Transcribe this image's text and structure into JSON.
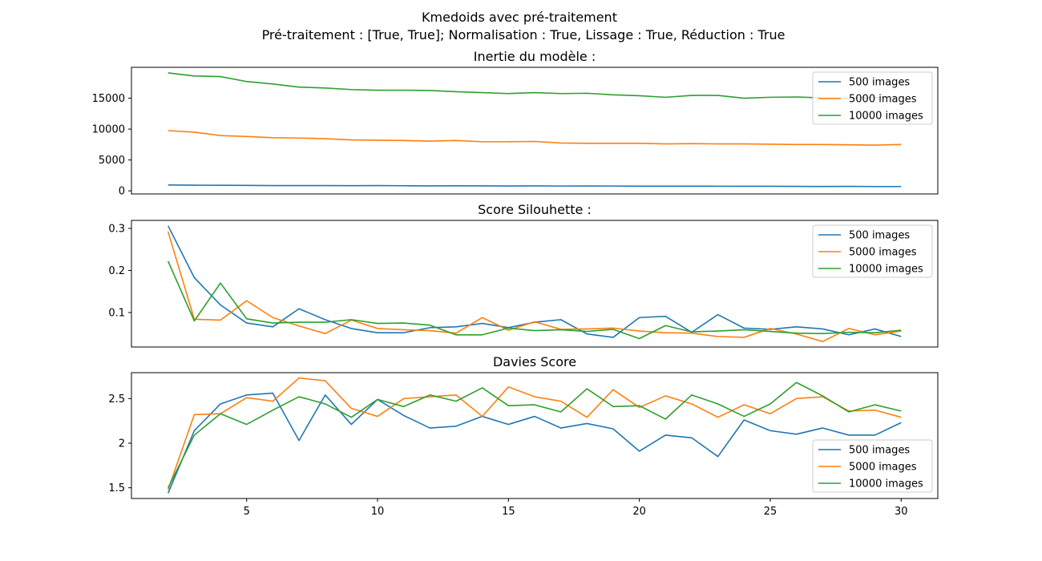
{
  "figure": {
    "title": "Kmedoids avec pré-traitement",
    "subtitle": "Pré-traitement : [True, True]; Normalisation : True, Lissage : True, Réduction : True"
  },
  "colors": {
    "500 images": "#1f77b4",
    "5000 images": "#ff7f0e",
    "10000 images": "#2ca02c"
  },
  "chart_data": [
    {
      "type": "line",
      "title": "Inertie du modèle :",
      "x": [
        2,
        3,
        4,
        5,
        6,
        7,
        8,
        9,
        10,
        11,
        12,
        13,
        14,
        15,
        16,
        17,
        18,
        19,
        20,
        21,
        22,
        23,
        24,
        25,
        26,
        27,
        28,
        29,
        30
      ],
      "series": [
        {
          "name": "500 images",
          "values": [
            950,
            920,
            900,
            880,
            860,
            850,
            860,
            840,
            860,
            830,
            810,
            820,
            800,
            790,
            800,
            780,
            790,
            780,
            760,
            760,
            760,
            750,
            740,
            740,
            720,
            710,
            720,
            700,
            700
          ]
        },
        {
          "name": "5000 images",
          "values": [
            9750,
            9500,
            8950,
            8800,
            8600,
            8550,
            8450,
            8250,
            8200,
            8150,
            8050,
            8150,
            7950,
            7950,
            8000,
            7750,
            7700,
            7700,
            7700,
            7600,
            7650,
            7600,
            7600,
            7550,
            7500,
            7500,
            7450,
            7400,
            7500
          ]
        },
        {
          "name": "10000 images",
          "values": [
            19100,
            18600,
            18500,
            17700,
            17300,
            16800,
            16650,
            16400,
            16300,
            16300,
            16250,
            16050,
            15900,
            15750,
            15900,
            15750,
            15800,
            15550,
            15400,
            15150,
            15450,
            15450,
            15000,
            15150,
            15200,
            15050,
            15000,
            15100,
            15200
          ]
        }
      ],
      "yticks": [
        0,
        5000,
        10000,
        15000
      ],
      "ylim": [
        -500,
        20000
      ],
      "xlim": [
        0.6,
        31.4
      ],
      "legend_position": "upper right"
    },
    {
      "type": "line",
      "title": "Score Silouhette :",
      "x": [
        2,
        3,
        4,
        5,
        6,
        7,
        8,
        9,
        10,
        11,
        12,
        13,
        14,
        15,
        16,
        17,
        18,
        19,
        20,
        21,
        22,
        23,
        24,
        25,
        26,
        27,
        28,
        29,
        30
      ],
      "series": [
        {
          "name": "500 images",
          "values": [
            0.306,
            0.183,
            0.118,
            0.075,
            0.066,
            0.109,
            0.083,
            0.062,
            0.052,
            0.052,
            0.064,
            0.066,
            0.074,
            0.064,
            0.077,
            0.083,
            0.049,
            0.041,
            0.088,
            0.091,
            0.053,
            0.095,
            0.063,
            0.06,
            0.066,
            0.061,
            0.047,
            0.061,
            0.043
          ]
        },
        {
          "name": "5000 images",
          "values": [
            0.292,
            0.084,
            0.082,
            0.128,
            0.088,
            0.068,
            0.05,
            0.082,
            0.062,
            0.059,
            0.057,
            0.051,
            0.088,
            0.058,
            0.078,
            0.06,
            0.061,
            0.063,
            0.056,
            0.052,
            0.051,
            0.043,
            0.041,
            0.062,
            0.049,
            0.031,
            0.062,
            0.047,
            0.056
          ]
        },
        {
          "name": "10000 images",
          "values": [
            0.222,
            0.08,
            0.17,
            0.085,
            0.075,
            0.077,
            0.077,
            0.083,
            0.074,
            0.075,
            0.07,
            0.047,
            0.047,
            0.063,
            0.057,
            0.059,
            0.055,
            0.06,
            0.038,
            0.069,
            0.054,
            0.056,
            0.059,
            0.055,
            0.051,
            0.05,
            0.053,
            0.052,
            0.058
          ]
        }
      ],
      "yticks": [
        0.1,
        0.2,
        0.3
      ],
      "ylim": [
        0.018,
        0.319
      ],
      "xlim": [
        0.6,
        31.4
      ],
      "legend_position": "upper right"
    },
    {
      "type": "line",
      "title": "Davies Score",
      "x": [
        2,
        3,
        4,
        5,
        6,
        7,
        8,
        9,
        10,
        11,
        12,
        13,
        14,
        15,
        16,
        17,
        18,
        19,
        20,
        21,
        22,
        23,
        24,
        25,
        26,
        27,
        28,
        29,
        30
      ],
      "series": [
        {
          "name": "500 images",
          "values": [
            1.44,
            2.14,
            2.44,
            2.54,
            2.56,
            2.03,
            2.54,
            2.21,
            2.49,
            2.31,
            2.17,
            2.19,
            2.3,
            2.21,
            2.3,
            2.17,
            2.22,
            2.16,
            1.91,
            2.09,
            2.06,
            1.85,
            2.26,
            2.14,
            2.1,
            2.17,
            2.09,
            2.09,
            2.23
          ]
        },
        {
          "name": "5000 images",
          "values": [
            1.48,
            2.32,
            2.33,
            2.51,
            2.47,
            2.73,
            2.7,
            2.39,
            2.3,
            2.5,
            2.52,
            2.54,
            2.3,
            2.63,
            2.52,
            2.47,
            2.29,
            2.6,
            2.4,
            2.53,
            2.44,
            2.29,
            2.43,
            2.33,
            2.5,
            2.52,
            2.36,
            2.37,
            2.29
          ]
        },
        {
          "name": "10000 images",
          "values": [
            1.5,
            2.09,
            2.33,
            2.21,
            2.37,
            2.52,
            2.44,
            2.29,
            2.49,
            2.41,
            2.54,
            2.47,
            2.62,
            2.42,
            2.43,
            2.35,
            2.61,
            2.41,
            2.42,
            2.27,
            2.54,
            2.44,
            2.3,
            2.44,
            2.68,
            2.53,
            2.35,
            2.43,
            2.36
          ]
        }
      ],
      "yticks": [
        1.5,
        2.0,
        2.5
      ],
      "ylim": [
        1.38,
        2.79
      ],
      "xticks": [
        5,
        10,
        15,
        20,
        25,
        30
      ],
      "xlim": [
        0.6,
        31.4
      ],
      "legend_position": "lower right"
    }
  ]
}
